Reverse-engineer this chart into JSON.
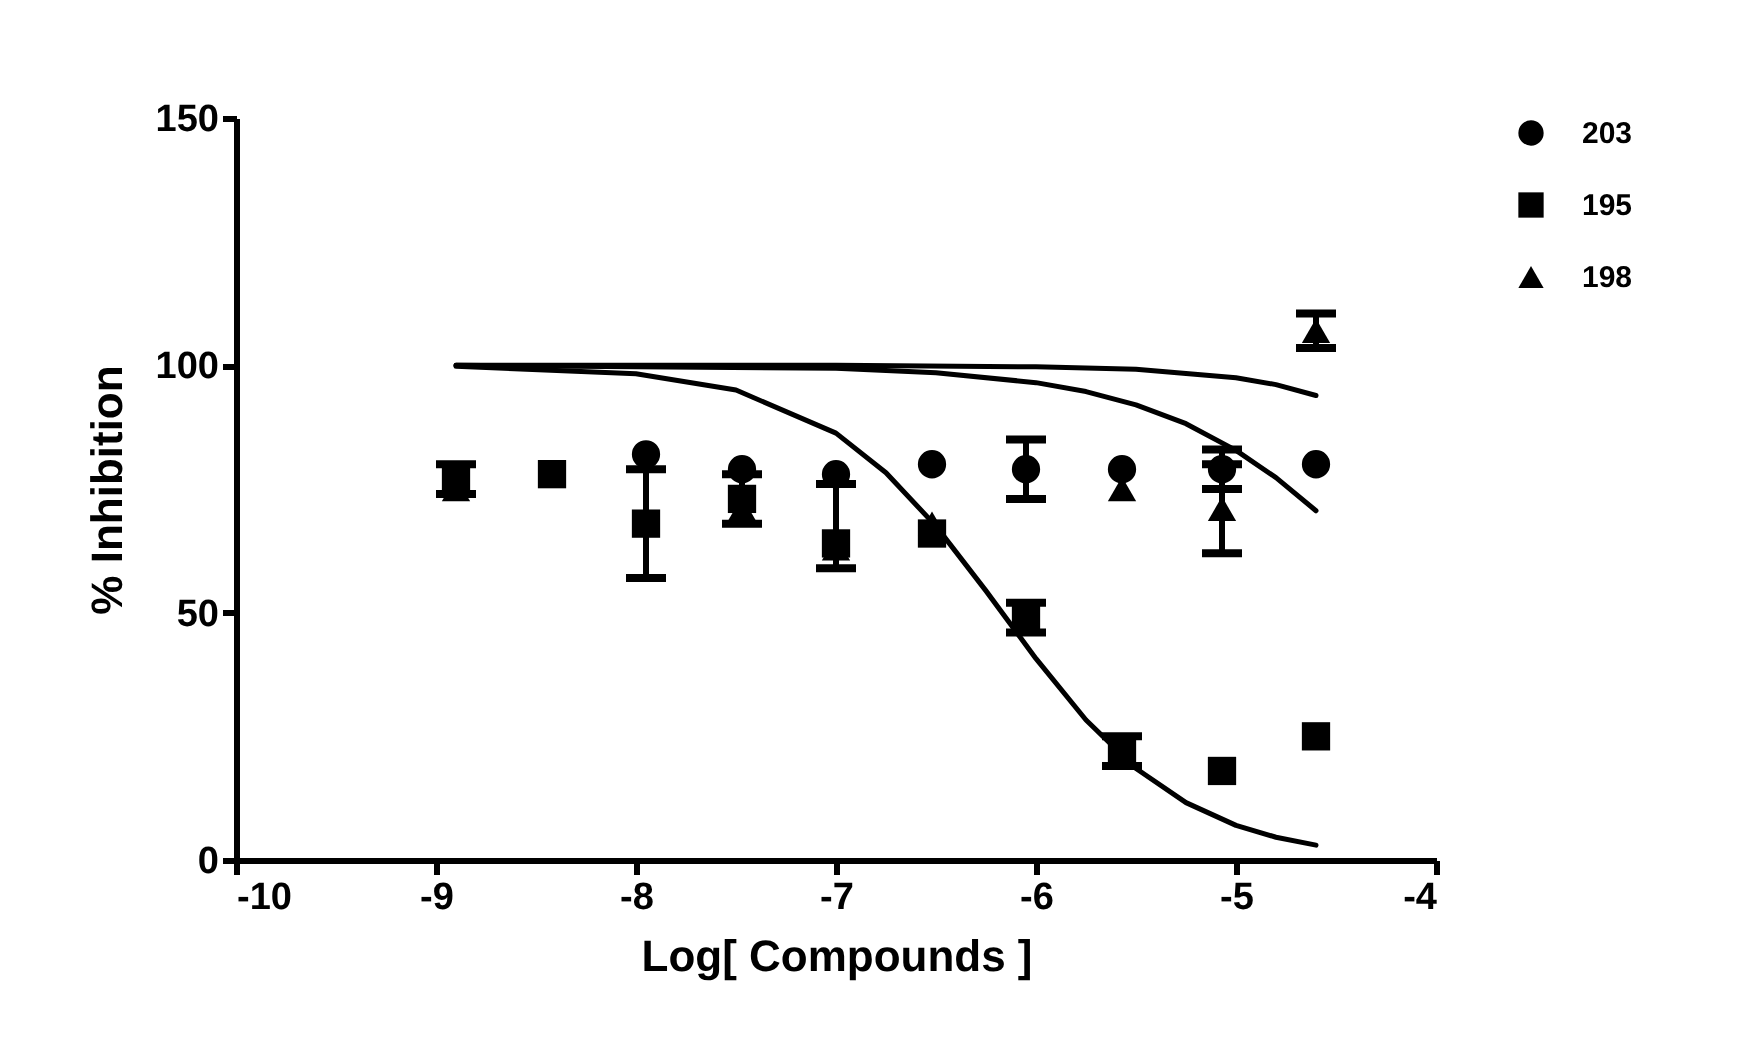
{
  "chart_data": {
    "type": "scatter",
    "xlabel": "Log[ Compounds ]",
    "ylabel": "% Inhibition",
    "xlim": [
      -10,
      -4
    ],
    "ylim": [
      0,
      150
    ],
    "xticks": [
      -10,
      -9,
      -8,
      -7,
      -6,
      -5,
      -4
    ],
    "yticks": [
      0,
      50,
      100,
      150
    ],
    "grid": false,
    "legend": "top right",
    "series": [
      {
        "name": "203",
        "color": "#000000",
        "marker": "circle",
        "x": [
          -7.95,
          -7.47,
          -7.0,
          -6.52,
          -6.05,
          -5.57,
          -5.07,
          -4.6
        ],
        "values": [
          82,
          79,
          78,
          80,
          79,
          79,
          79,
          80
        ],
        "errors": [
          null,
          null,
          null,
          null,
          6,
          null,
          4,
          null
        ]
      },
      {
        "name": "195",
        "color": "#000000",
        "marker": "square",
        "x": [
          -8.9,
          -8.42,
          -7.95,
          -7.47,
          -7.0,
          -6.52,
          -6.05,
          -5.57,
          -5.07,
          -4.6
        ],
        "values": [
          77,
          78,
          68,
          73,
          64,
          66,
          49,
          22,
          18,
          25
        ],
        "errors": [
          3,
          null,
          11,
          5,
          null,
          null,
          3,
          3,
          null,
          null
        ]
      },
      {
        "name": "198",
        "color": "#000000",
        "marker": "triangle",
        "x": [
          -8.9,
          -7.47,
          -7.0,
          -6.52,
          -5.57,
          -5.07,
          -4.6
        ],
        "values": [
          75,
          71,
          63,
          68,
          75,
          71,
          107
        ],
        "errors": [
          null,
          null,
          [
            59,
            76
          ],
          null,
          null,
          9,
          3.5
        ]
      },
      {
        "type": "line",
        "color": "#000000",
        "x": [
          -8.9,
          -8.0,
          -7.5,
          -7.0,
          -6.75,
          -6.5,
          -6.25,
          -6.0,
          -5.75,
          -5.5,
          -5.25,
          -5.0,
          -4.8,
          -4.6
        ],
        "values": [
          99.8,
          98.3,
          95.0,
          86.3,
          78.3,
          67.5,
          54.4,
          40.7,
          28.3,
          18.5,
          11.6,
          7.0,
          4.6,
          3.0
        ]
      },
      {
        "type": "line",
        "color": "#000000",
        "x": [
          -8.9,
          -7.0,
          -6.5,
          -6.0,
          -5.75,
          -5.5,
          -5.25,
          -5.0,
          -4.8,
          -4.6
        ],
        "values": [
          100.0,
          99.4,
          98.5,
          96.5,
          94.7,
          92.0,
          88.2,
          82.8,
          77.3,
          70.6
        ]
      },
      {
        "type": "line",
        "color": "#000000",
        "x": [
          -8.9,
          -7.0,
          -6.0,
          -5.5,
          -5.0,
          -4.8,
          -4.6
        ],
        "values": [
          100.0,
          100.0,
          99.7,
          99.2,
          97.5,
          96.1,
          93.9
        ]
      }
    ]
  }
}
